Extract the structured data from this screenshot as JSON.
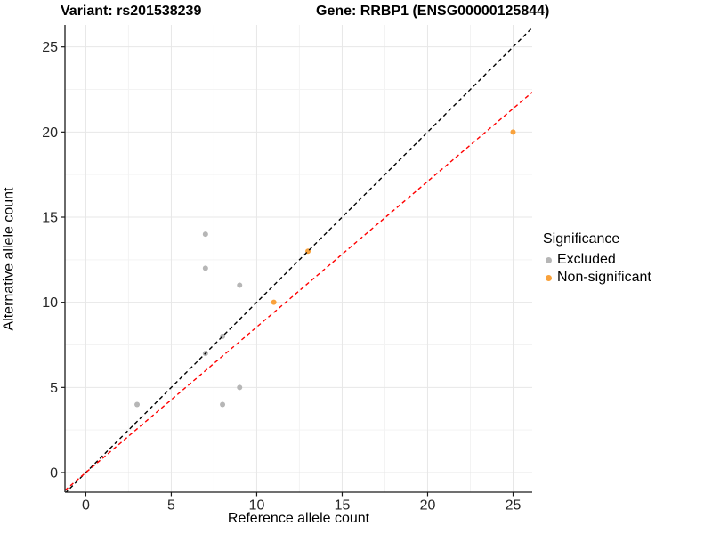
{
  "titles": {
    "variant": "Variant: rs201538239",
    "gene": "Gene: RRBP1 (ENSG00000125844)"
  },
  "chart_data": {
    "type": "scatter",
    "title_left": "Variant: rs201538239",
    "title_right": "Gene: RRBP1 (ENSG00000125844)",
    "xlabel": "Reference allele count",
    "ylabel": "Alternative allele count",
    "xlim": [
      -1.22,
      26.12
    ],
    "ylim": [
      -1.15,
      26.29
    ],
    "xticks": [
      0,
      5,
      10,
      15,
      20,
      25
    ],
    "yticks": [
      0,
      5,
      10,
      15,
      20,
      25
    ],
    "xminor": [
      2.5,
      7.5,
      12.5,
      17.5,
      22.5
    ],
    "yminor": [
      2.5,
      7.5,
      12.5,
      17.5,
      22.5
    ],
    "grid": true,
    "series": [
      {
        "name": "Excluded",
        "color": "#b6b6b6",
        "points": [
          [
            3,
            4
          ],
          [
            7,
            14
          ],
          [
            7,
            12
          ],
          [
            7,
            7
          ],
          [
            8,
            8
          ],
          [
            8,
            4
          ],
          [
            9,
            11
          ],
          [
            9,
            5
          ]
        ]
      },
      {
        "name": "Non-significant",
        "color": "#f9a23c",
        "points": [
          [
            11,
            10
          ],
          [
            13,
            13
          ],
          [
            25,
            20
          ]
        ]
      }
    ],
    "lines": [
      {
        "name": "identity-line",
        "slope": 1.0,
        "intercept": 0,
        "color": "#000000"
      },
      {
        "name": "fit-line",
        "slope": 0.855,
        "intercept": 0,
        "color": "#ff0000"
      }
    ],
    "legend": {
      "title": "Significance",
      "position": "right",
      "items": [
        {
          "label": "Excluded",
          "color": "#b6b6b6"
        },
        {
          "label": "Non-significant",
          "color": "#f9a23c"
        }
      ]
    },
    "colors": {
      "grid_major": "#e7e7e7",
      "grid_minor": "#f3f3f3",
      "axis": "#1a1a1a",
      "tick_text": "#262626"
    }
  }
}
